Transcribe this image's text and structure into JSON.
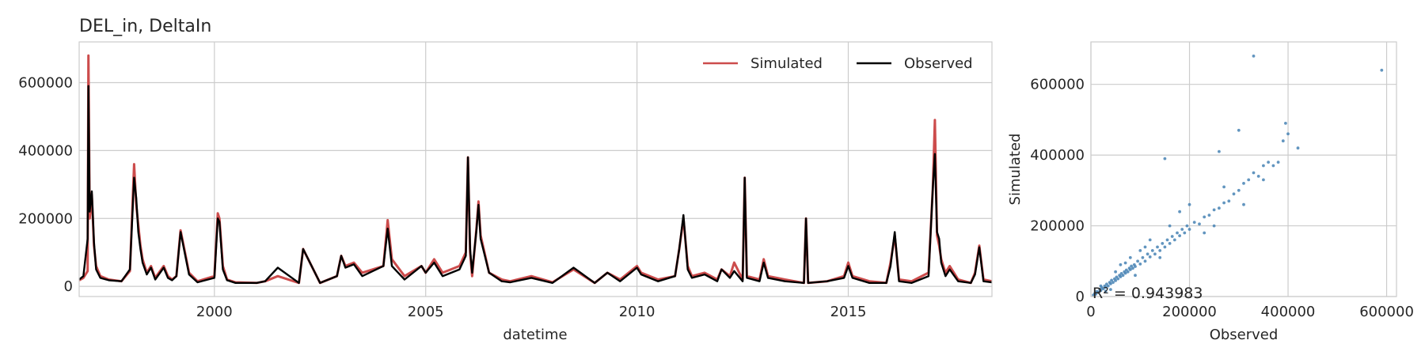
{
  "chart_data": [
    {
      "type": "line",
      "title": "DEL_in, DeltaIn",
      "xlabel": "datetime",
      "ylabel": "",
      "xlim": [
        1996.8,
        2018.4
      ],
      "ylim": [
        -30000,
        720000
      ],
      "x_ticks": [
        2000,
        2005,
        2010,
        2015
      ],
      "x_tick_labels": [
        "2000",
        "2005",
        "2010",
        "2015"
      ],
      "y_ticks": [
        0,
        200000,
        400000,
        600000
      ],
      "y_tick_labels": [
        "0",
        "200000",
        "400000",
        "600000"
      ],
      "grid": true,
      "legend": {
        "placement": "top-right",
        "entries": [
          "Simulated",
          "Observed"
        ]
      },
      "series": [
        {
          "name": "Simulated",
          "color": "#cc4c4c",
          "x": [
            1996.8,
            1996.9,
            1997.0,
            1997.02,
            1997.05,
            1997.1,
            1997.15,
            1997.2,
            1997.3,
            1997.5,
            1997.8,
            1998.0,
            1998.1,
            1998.15,
            1998.2,
            1998.25,
            1998.3,
            1998.4,
            1998.5,
            1998.6,
            1998.8,
            1998.9,
            1999.0,
            1999.1,
            1999.2,
            1999.4,
            1999.6,
            2000.0,
            2000.08,
            2000.12,
            2000.2,
            2000.3,
            2000.5,
            2001.0,
            2001.2,
            2001.5,
            2002.0,
            2002.1,
            2002.5,
            2002.9,
            2003.0,
            2003.1,
            2003.3,
            2003.5,
            2004.0,
            2004.1,
            2004.2,
            2004.5,
            2004.9,
            2005.0,
            2005.2,
            2005.4,
            2005.8,
            2005.95,
            2006.0,
            2006.05,
            2006.1,
            2006.2,
            2006.25,
            2006.3,
            2006.5,
            2006.8,
            2007.0,
            2007.5,
            2008.0,
            2008.5,
            2009.0,
            2009.3,
            2009.6,
            2010.0,
            2010.1,
            2010.5,
            2010.9,
            2011.0,
            2011.1,
            2011.2,
            2011.3,
            2011.6,
            2011.9,
            2012.0,
            2012.2,
            2012.3,
            2012.5,
            2012.55,
            2012.6,
            2012.9,
            2013.0,
            2013.1,
            2013.5,
            2013.95,
            2014.0,
            2014.05,
            2014.5,
            2014.9,
            2015.0,
            2015.1,
            2015.5,
            2015.9,
            2016.0,
            2016.1,
            2016.2,
            2016.5,
            2016.9,
            2017.0,
            2017.05,
            2017.1,
            2017.15,
            2017.2,
            2017.3,
            2017.4,
            2017.6,
            2017.9,
            2018.0,
            2018.1,
            2018.2,
            2018.4
          ],
          "y": [
            18000,
            25000,
            45000,
            680000,
            200000,
            270000,
            120000,
            60000,
            30000,
            20000,
            15000,
            45000,
            360000,
            240000,
            180000,
            120000,
            80000,
            40000,
            60000,
            25000,
            60000,
            30000,
            20000,
            30000,
            165000,
            40000,
            15000,
            30000,
            215000,
            200000,
            60000,
            20000,
            12000,
            10000,
            15000,
            30000,
            10000,
            110000,
            10000,
            30000,
            90000,
            60000,
            70000,
            40000,
            60000,
            195000,
            80000,
            30000,
            60000,
            40000,
            80000,
            40000,
            60000,
            100000,
            380000,
            100000,
            30000,
            170000,
            250000,
            150000,
            40000,
            20000,
            15000,
            30000,
            12000,
            50000,
            10000,
            40000,
            20000,
            60000,
            40000,
            20000,
            30000,
            110000,
            200000,
            60000,
            30000,
            40000,
            20000,
            50000,
            30000,
            70000,
            20000,
            320000,
            30000,
            20000,
            80000,
            30000,
            20000,
            10000,
            200000,
            10000,
            15000,
            30000,
            70000,
            30000,
            15000,
            10000,
            70000,
            150000,
            20000,
            15000,
            40000,
            290000,
            490000,
            150000,
            120000,
            80000,
            40000,
            60000,
            20000,
            10000,
            40000,
            120000,
            20000,
            15000
          ]
        },
        {
          "name": "Observed",
          "color": "#000000",
          "x": [
            1996.8,
            1996.9,
            1997.0,
            1997.02,
            1997.05,
            1997.1,
            1997.15,
            1997.2,
            1997.3,
            1997.5,
            1997.8,
            1998.0,
            1998.1,
            1998.15,
            1998.2,
            1998.25,
            1998.3,
            1998.4,
            1998.5,
            1998.6,
            1998.8,
            1998.9,
            1999.0,
            1999.1,
            1999.2,
            1999.4,
            1999.6,
            2000.0,
            2000.08,
            2000.12,
            2000.2,
            2000.3,
            2000.5,
            2001.0,
            2001.2,
            2001.5,
            2002.0,
            2002.1,
            2002.5,
            2002.9,
            2003.0,
            2003.1,
            2003.3,
            2003.5,
            2004.0,
            2004.1,
            2004.2,
            2004.5,
            2004.9,
            2005.0,
            2005.2,
            2005.4,
            2005.8,
            2005.95,
            2006.0,
            2006.05,
            2006.1,
            2006.2,
            2006.25,
            2006.3,
            2006.5,
            2006.8,
            2007.0,
            2007.5,
            2008.0,
            2008.5,
            2009.0,
            2009.3,
            2009.6,
            2010.0,
            2010.1,
            2010.5,
            2010.9,
            2011.0,
            2011.1,
            2011.2,
            2011.3,
            2011.6,
            2011.9,
            2012.0,
            2012.2,
            2012.3,
            2012.5,
            2012.55,
            2012.6,
            2012.9,
            2013.0,
            2013.1,
            2013.5,
            2013.95,
            2014.0,
            2014.05,
            2014.5,
            2014.9,
            2015.0,
            2015.1,
            2015.5,
            2015.9,
            2016.0,
            2016.1,
            2016.2,
            2016.5,
            2016.9,
            2017.0,
            2017.05,
            2017.1,
            2017.15,
            2017.2,
            2017.3,
            2017.4,
            2017.6,
            2017.9,
            2018.0,
            2018.1,
            2018.2,
            2018.4
          ],
          "y": [
            20000,
            30000,
            140000,
            590000,
            220000,
            280000,
            130000,
            50000,
            25000,
            18000,
            15000,
            50000,
            320000,
            260000,
            160000,
            110000,
            70000,
            35000,
            55000,
            20000,
            55000,
            25000,
            18000,
            30000,
            160000,
            35000,
            12000,
            25000,
            200000,
            190000,
            50000,
            18000,
            10000,
            10000,
            15000,
            55000,
            10000,
            110000,
            10000,
            30000,
            90000,
            55000,
            65000,
            30000,
            60000,
            170000,
            60000,
            20000,
            60000,
            40000,
            70000,
            30000,
            50000,
            90000,
            380000,
            110000,
            40000,
            165000,
            240000,
            140000,
            40000,
            15000,
            12000,
            25000,
            10000,
            55000,
            10000,
            40000,
            15000,
            55000,
            35000,
            15000,
            30000,
            110000,
            210000,
            50000,
            25000,
            35000,
            15000,
            50000,
            25000,
            45000,
            15000,
            320000,
            25000,
            15000,
            70000,
            25000,
            15000,
            10000,
            200000,
            10000,
            15000,
            25000,
            60000,
            25000,
            10000,
            10000,
            60000,
            160000,
            15000,
            10000,
            30000,
            290000,
            390000,
            160000,
            140000,
            70000,
            30000,
            50000,
            15000,
            10000,
            35000,
            115000,
            15000,
            12000
          ]
        }
      ]
    },
    {
      "type": "scatter",
      "title": "",
      "xlabel": "Observed",
      "ylabel": "Simulated",
      "xlim": [
        0,
        620000
      ],
      "ylim": [
        0,
        720000
      ],
      "x_ticks": [
        0,
        200000,
        400000,
        600000
      ],
      "x_tick_labels": [
        "0",
        "200000",
        "400000",
        "600000"
      ],
      "y_ticks": [
        0,
        200000,
        400000,
        600000
      ],
      "y_tick_labels": [
        "0",
        "200000",
        "400000",
        "600000"
      ],
      "grid": true,
      "color": "#4682b4",
      "annotation": "R² = 0.943983",
      "points": [
        [
          5000,
          4000
        ],
        [
          8000,
          9000
        ],
        [
          10000,
          7000
        ],
        [
          12000,
          14000
        ],
        [
          15000,
          12000
        ],
        [
          18000,
          20000
        ],
        [
          20000,
          17000
        ],
        [
          22000,
          25000
        ],
        [
          25000,
          22000
        ],
        [
          28000,
          30000
        ],
        [
          30000,
          26000
        ],
        [
          32000,
          35000
        ],
        [
          35000,
          30000
        ],
        [
          38000,
          40000
        ],
        [
          40000,
          36000
        ],
        [
          42000,
          46000
        ],
        [
          45000,
          40000
        ],
        [
          48000,
          50000
        ],
        [
          50000,
          45000
        ],
        [
          52000,
          55000
        ],
        [
          55000,
          50000
        ],
        [
          58000,
          60000
        ],
        [
          60000,
          56000
        ],
        [
          62000,
          65000
        ],
        [
          65000,
          60000
        ],
        [
          68000,
          70000
        ],
        [
          70000,
          66000
        ],
        [
          72000,
          75000
        ],
        [
          75000,
          70000
        ],
        [
          78000,
          80000
        ],
        [
          80000,
          76000
        ],
        [
          82000,
          86000
        ],
        [
          85000,
          80000
        ],
        [
          88000,
          90000
        ],
        [
          90000,
          85000
        ],
        [
          95000,
          100000
        ],
        [
          100000,
          92000
        ],
        [
          105000,
          110000
        ],
        [
          110000,
          100000
        ],
        [
          115000,
          120000
        ],
        [
          120000,
          112000
        ],
        [
          125000,
          130000
        ],
        [
          130000,
          120000
        ],
        [
          135000,
          140000
        ],
        [
          140000,
          130000
        ],
        [
          145000,
          150000
        ],
        [
          150000,
          140000
        ],
        [
          155000,
          160000
        ],
        [
          160000,
          150000
        ],
        [
          165000,
          170000
        ],
        [
          170000,
          160000
        ],
        [
          175000,
          180000
        ],
        [
          180000,
          172000
        ],
        [
          185000,
          190000
        ],
        [
          190000,
          180000
        ],
        [
          195000,
          200000
        ],
        [
          200000,
          190000
        ],
        [
          210000,
          210000
        ],
        [
          220000,
          205000
        ],
        [
          230000,
          225000
        ],
        [
          240000,
          230000
        ],
        [
          250000,
          245000
        ],
        [
          260000,
          250000
        ],
        [
          270000,
          265000
        ],
        [
          280000,
          270000
        ],
        [
          290000,
          290000
        ],
        [
          300000,
          300000
        ],
        [
          310000,
          320000
        ],
        [
          320000,
          330000
        ],
        [
          330000,
          350000
        ],
        [
          340000,
          340000
        ],
        [
          350000,
          370000
        ],
        [
          360000,
          380000
        ],
        [
          370000,
          370000
        ],
        [
          380000,
          380000
        ],
        [
          390000,
          440000
        ],
        [
          400000,
          460000
        ],
        [
          260000,
          410000
        ],
        [
          300000,
          470000
        ],
        [
          330000,
          680000
        ],
        [
          590000,
          640000
        ],
        [
          150000,
          390000
        ],
        [
          420000,
          420000
        ],
        [
          250000,
          200000
        ],
        [
          180000,
          240000
        ],
        [
          120000,
          160000
        ],
        [
          90000,
          60000
        ],
        [
          60000,
          90000
        ],
        [
          30000,
          15000
        ],
        [
          40000,
          20000
        ],
        [
          70000,
          95000
        ],
        [
          110000,
          140000
        ],
        [
          140000,
          110000
        ],
        [
          200000,
          260000
        ],
        [
          230000,
          180000
        ],
        [
          270000,
          310000
        ],
        [
          310000,
          260000
        ],
        [
          350000,
          330000
        ],
        [
          395000,
          490000
        ],
        [
          160000,
          200000
        ],
        [
          100000,
          130000
        ],
        [
          80000,
          110000
        ],
        [
          50000,
          70000
        ],
        [
          20000,
          30000
        ]
      ]
    }
  ]
}
